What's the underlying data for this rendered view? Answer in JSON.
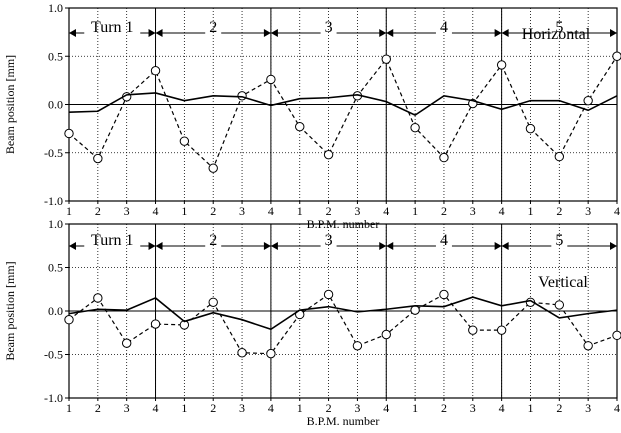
{
  "chart_data": [
    {
      "type": "line",
      "id": "horizontal",
      "annotation": "Horizontal",
      "ylabel": "Beam position [mm]",
      "xlabel": "B.P.M. number",
      "ylim": [
        -1.0,
        1.0
      ],
      "yticks": [
        -1.0,
        -0.5,
        0.0,
        0.5,
        1.0
      ],
      "ytick_labels": [
        "-1.0",
        "-0.5",
        "0.0",
        "0.5",
        "1.0"
      ],
      "xtick_labels": [
        "1",
        "2",
        "3",
        "4",
        "1",
        "2",
        "3",
        "4",
        "1",
        "2",
        "3",
        "4",
        "1",
        "2",
        "3",
        "4",
        "1",
        "2",
        "3",
        "4"
      ],
      "turn_labels": [
        "Turn 1",
        "2",
        "3",
        "4",
        "5"
      ],
      "grid": true,
      "series": [
        {
          "style": "dashed-circles",
          "values": [
            -0.3,
            -0.56,
            0.08,
            0.35,
            -0.38,
            -0.66,
            0.09,
            0.26,
            -0.23,
            -0.52,
            0.09,
            0.47,
            -0.24,
            -0.55,
            0.01,
            0.41,
            -0.25,
            -0.54,
            0.04,
            0.5
          ]
        },
        {
          "style": "solid",
          "values": [
            -0.08,
            -0.07,
            0.1,
            0.12,
            0.04,
            0.09,
            0.08,
            -0.01,
            0.06,
            0.07,
            0.1,
            0.03,
            -0.11,
            0.09,
            0.04,
            -0.05,
            0.04,
            0.04,
            -0.06,
            0.09
          ]
        }
      ]
    },
    {
      "type": "line",
      "id": "vertical",
      "annotation": "Vertical",
      "ylabel": "Beam position [mm]",
      "xlabel": "B.P.M. number",
      "ylim": [
        -1.0,
        1.0
      ],
      "yticks": [
        -1.0,
        -0.5,
        0.0,
        0.5,
        1.0
      ],
      "ytick_labels": [
        "-1.0",
        "-0.5",
        "0.0",
        "0.5",
        "1.0"
      ],
      "xtick_labels": [
        "1",
        "2",
        "3",
        "4",
        "1",
        "2",
        "3",
        "4",
        "1",
        "2",
        "3",
        "4",
        "1",
        "2",
        "3",
        "4",
        "1",
        "2",
        "3",
        "4"
      ],
      "turn_labels": [
        "Turn 1",
        "2",
        "3",
        "4",
        "5"
      ],
      "grid": true,
      "series": [
        {
          "style": "dashed-circles",
          "values": [
            -0.1,
            0.15,
            -0.37,
            -0.15,
            -0.16,
            0.1,
            -0.48,
            -0.49,
            -0.04,
            0.19,
            -0.4,
            -0.27,
            0.01,
            0.19,
            -0.22,
            -0.22,
            0.1,
            0.07,
            -0.4,
            -0.28
          ]
        },
        {
          "style": "solid",
          "values": [
            -0.03,
            0.02,
            0.01,
            0.15,
            -0.12,
            -0.02,
            -0.1,
            -0.21,
            0.01,
            0.05,
            -0.01,
            0.02,
            0.06,
            0.05,
            0.16,
            0.06,
            0.12,
            -0.08,
            -0.03,
            0.01
          ]
        }
      ]
    }
  ]
}
